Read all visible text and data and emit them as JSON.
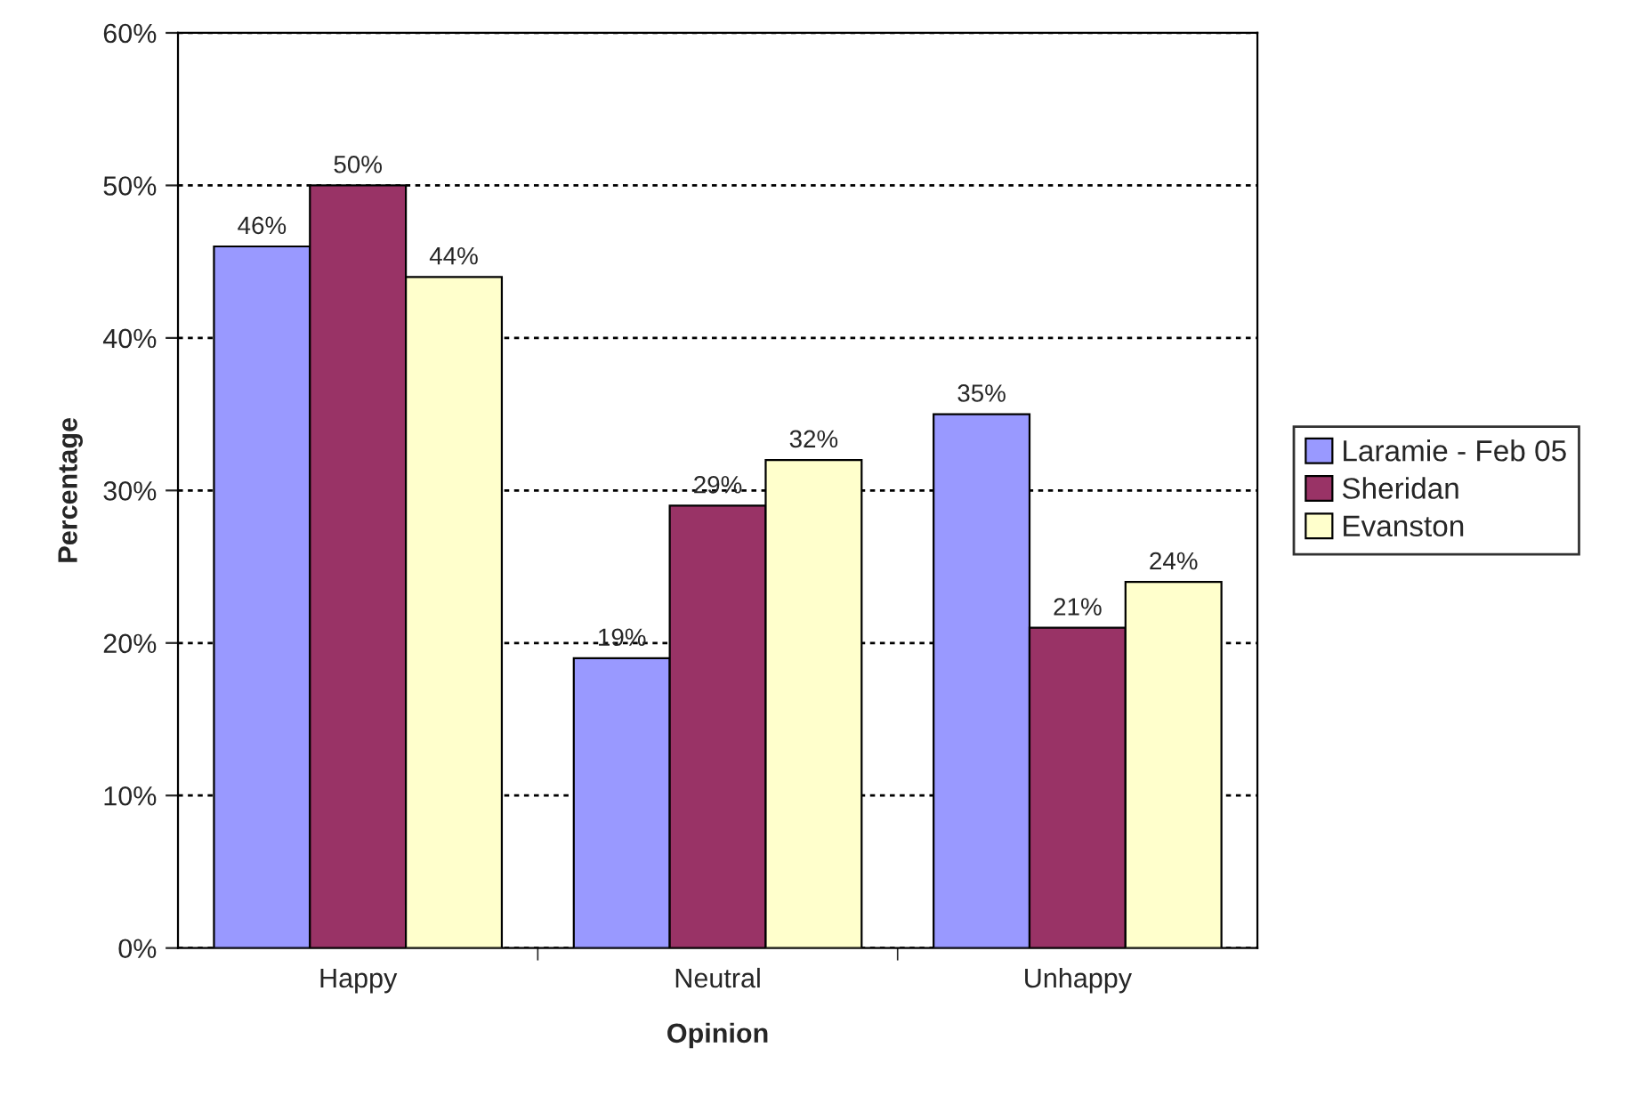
{
  "chart_data": {
    "type": "bar",
    "xlabel": "Opinion",
    "ylabel": "Percentage",
    "categories": [
      "Happy",
      "Neutral",
      "Unhappy"
    ],
    "series": [
      {
        "name": "Laramie - Feb 05",
        "color": "#9999ff",
        "values": [
          46,
          19,
          35
        ],
        "value_labels": [
          "46%",
          "19%",
          "35%"
        ]
      },
      {
        "name": "Sheridan",
        "color": "#993366",
        "values": [
          50,
          29,
          21
        ],
        "value_labels": [
          "50%",
          "29%",
          "21%"
        ]
      },
      {
        "name": "Evanston",
        "color": "#ffffcc",
        "values": [
          44,
          32,
          24
        ],
        "value_labels": [
          "44%",
          "32%",
          "24%"
        ]
      }
    ],
    "ylim": [
      0,
      60
    ],
    "yticks": [
      {
        "value": 0,
        "label": "0%"
      },
      {
        "value": 10,
        "label": "10%"
      },
      {
        "value": 20,
        "label": "20%"
      },
      {
        "value": 30,
        "label": "30%"
      },
      {
        "value": 40,
        "label": "40%"
      },
      {
        "value": 50,
        "label": "50%"
      },
      {
        "value": 60,
        "label": "60%"
      }
    ],
    "grid": "y",
    "legend": "right"
  }
}
